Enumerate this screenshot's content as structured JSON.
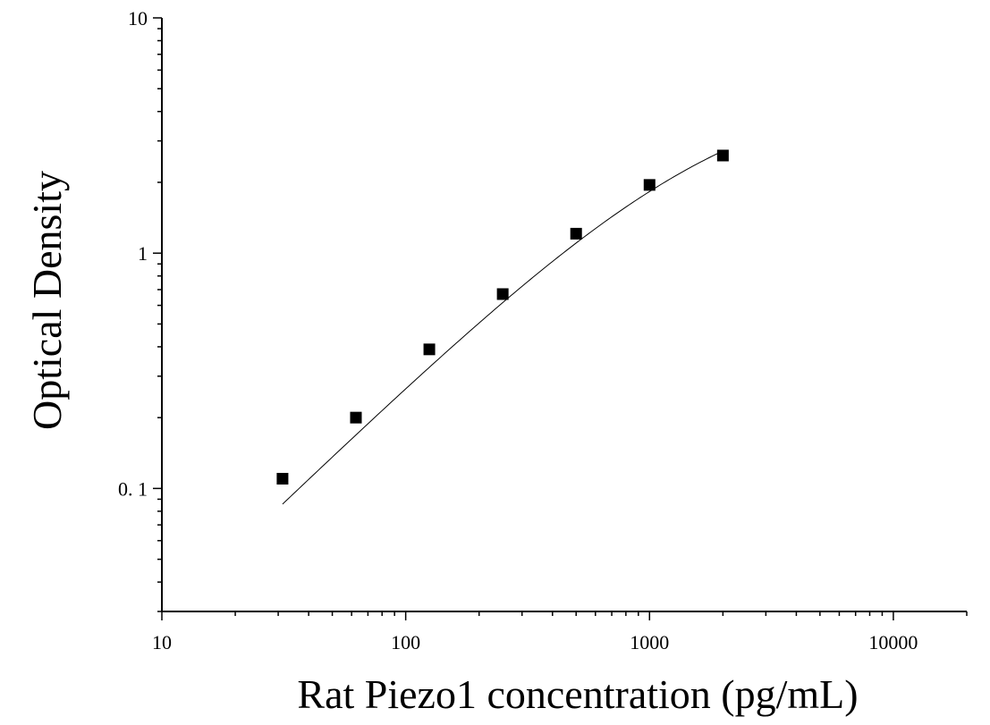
{
  "chart_data": {
    "type": "scatter",
    "xlabel": "Rat Piezo1 concentration (pg/mL)",
    "ylabel": "Optical Density",
    "x_scale": "log",
    "y_scale": "log",
    "xlim": [
      10,
      20000
    ],
    "ylim": [
      0.03,
      10
    ],
    "x_ticks": [
      "10",
      "100",
      "1000",
      "10000"
    ],
    "y_ticks": [
      "0. 1",
      "1",
      "10"
    ],
    "grid": false,
    "points": [
      {
        "x": 31.25,
        "y": 0.11
      },
      {
        "x": 62.5,
        "y": 0.2
      },
      {
        "x": 125,
        "y": 0.39
      },
      {
        "x": 250,
        "y": 0.67
      },
      {
        "x": 500,
        "y": 1.21
      },
      {
        "x": 1000,
        "y": 1.95
      },
      {
        "x": 2000,
        "y": 2.6
      }
    ],
    "fit_curve": {
      "type": "four-parameter logistic"
    },
    "colors": {
      "marker": "#000000",
      "curve": "#000000",
      "axis": "#000000"
    }
  }
}
